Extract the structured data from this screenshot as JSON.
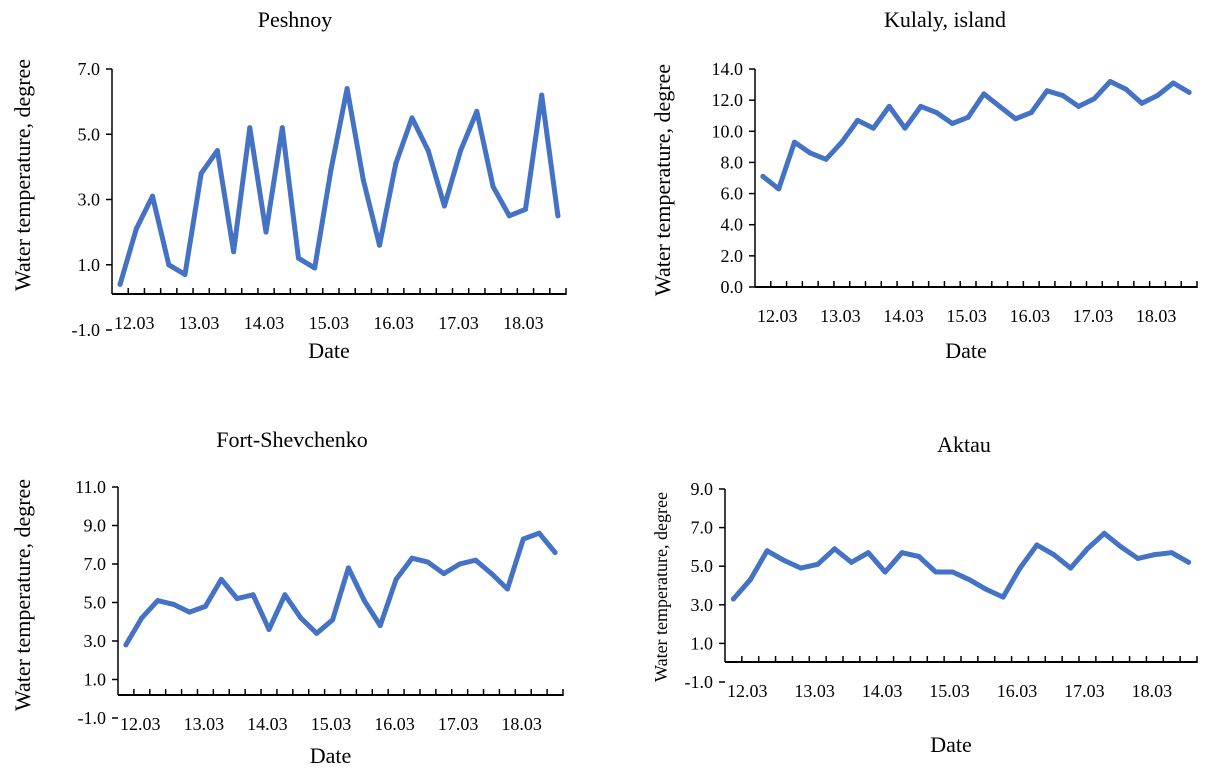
{
  "colors": {
    "series": "#4472C4",
    "axis": "#000000"
  },
  "chart_data": [
    {
      "type": "line",
      "title": "Peshnoy",
      "xlabel": "Date",
      "ylabel": "Water temperature, degree",
      "ylim": [
        -1.0,
        7.0
      ],
      "yticks": [
        "-1.0",
        "1.0",
        "3.0",
        "5.0",
        "7.0"
      ],
      "xtick_labels": [
        "12.03",
        "13.03",
        "14.03",
        "15.03",
        "16.03",
        "17.03",
        "18.03"
      ],
      "points_per_day": 4,
      "grid": false,
      "values": [
        0.4,
        2.1,
        3.1,
        1.0,
        0.7,
        3.8,
        4.5,
        1.4,
        5.2,
        2.0,
        5.2,
        1.2,
        0.9,
        3.9,
        6.4,
        3.6,
        1.6,
        4.1,
        5.5,
        4.5,
        2.8,
        4.5,
        5.7,
        3.4,
        2.5,
        2.7,
        6.2,
        2.5
      ]
    },
    {
      "type": "line",
      "title": "Kulaly, island",
      "xlabel": "Date",
      "ylabel": "Water temperature, degree",
      "ylim": [
        0.0,
        14.0
      ],
      "yticks": [
        "0.0",
        "2.0",
        "4.0",
        "6.0",
        "8.0",
        "10.0",
        "12.0",
        "14.0"
      ],
      "xtick_labels": [
        "12.03",
        "13.03",
        "14.03",
        "15.03",
        "16.03",
        "17.03",
        "18.03"
      ],
      "points_per_day": 4,
      "grid": false,
      "values": [
        7.1,
        6.3,
        9.3,
        8.6,
        8.2,
        9.3,
        10.7,
        10.2,
        11.6,
        10.2,
        11.6,
        11.2,
        10.5,
        10.9,
        12.4,
        11.6,
        10.8,
        11.2,
        12.6,
        12.3,
        11.6,
        12.1,
        13.2,
        12.7,
        11.8,
        12.3,
        13.1,
        12.5
      ]
    },
    {
      "type": "line",
      "title": "Fort-Shevchenko",
      "xlabel": "Date",
      "ylabel": "Water temperature, degree",
      "ylim": [
        -1.0,
        11.0
      ],
      "yticks": [
        "-1.0",
        "1.0",
        "3.0",
        "5.0",
        "7.0",
        "9.0",
        "11.0"
      ],
      "xtick_labels": [
        "12.03",
        "13.03",
        "14.03",
        "15.03",
        "16.03",
        "17.03",
        "18.03"
      ],
      "points_per_day": 4,
      "grid": false,
      "values": [
        2.8,
        4.2,
        5.1,
        4.9,
        4.5,
        4.8,
        6.2,
        5.2,
        5.4,
        3.6,
        5.4,
        4.2,
        3.4,
        4.1,
        6.8,
        5.1,
        3.8,
        6.2,
        7.3,
        7.1,
        6.5,
        7.0,
        7.2,
        6.5,
        5.7,
        8.3,
        8.6,
        7.6
      ]
    },
    {
      "type": "line",
      "title": "Aktau",
      "xlabel": "Date",
      "ylabel": "Water temperature, degree",
      "ylim": [
        -1.0,
        9.0
      ],
      "yticks": [
        "-1.0",
        "1.0",
        "3.0",
        "5.0",
        "7.0",
        "9.0"
      ],
      "xtick_labels": [
        "12.03",
        "13.03",
        "14.03",
        "15.03",
        "16.03",
        "17.03",
        "18.03"
      ],
      "points_per_day": 4,
      "grid": false,
      "values": [
        3.3,
        4.3,
        5.8,
        5.3,
        4.9,
        5.1,
        5.9,
        5.2,
        5.7,
        4.7,
        5.7,
        5.5,
        4.7,
        4.7,
        4.3,
        3.8,
        3.4,
        4.9,
        6.1,
        5.6,
        4.9,
        5.9,
        6.7,
        6.0,
        5.4,
        5.6,
        5.7,
        5.2
      ]
    }
  ]
}
